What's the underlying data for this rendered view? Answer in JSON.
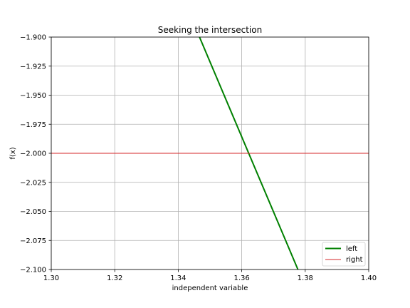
{
  "chart_data": {
    "type": "line",
    "title": "Seeking the intersection",
    "xlabel": "independent variable",
    "ylabel": "f(x)",
    "xlim": [
      1.3,
      1.4
    ],
    "ylim": [
      -2.1,
      -1.9
    ],
    "x_ticks": [
      1.3,
      1.32,
      1.34,
      1.36,
      1.38,
      1.4
    ],
    "x_tick_labels": [
      "1.30",
      "1.32",
      "1.34",
      "1.36",
      "1.38",
      "1.40"
    ],
    "y_ticks": [
      -1.9,
      -1.925,
      -1.95,
      -1.975,
      -2.0,
      -2.025,
      -2.05,
      -2.075,
      -2.1
    ],
    "y_tick_labels": [
      "−1.900",
      "−1.925",
      "−1.950",
      "−1.975",
      "−2.000",
      "−2.025",
      "−2.050",
      "−2.075",
      "−2.100"
    ],
    "grid": true,
    "legend_position": "lower-right",
    "series": [
      {
        "name": "left",
        "color": "#008000",
        "x": [
          1.3467,
          1.3777
        ],
        "y": [
          -1.9,
          -2.1
        ]
      },
      {
        "name": "right",
        "color": "#d62728",
        "x": [
          1.3,
          1.4
        ],
        "y": [
          -2.0,
          -2.0
        ]
      }
    ]
  }
}
